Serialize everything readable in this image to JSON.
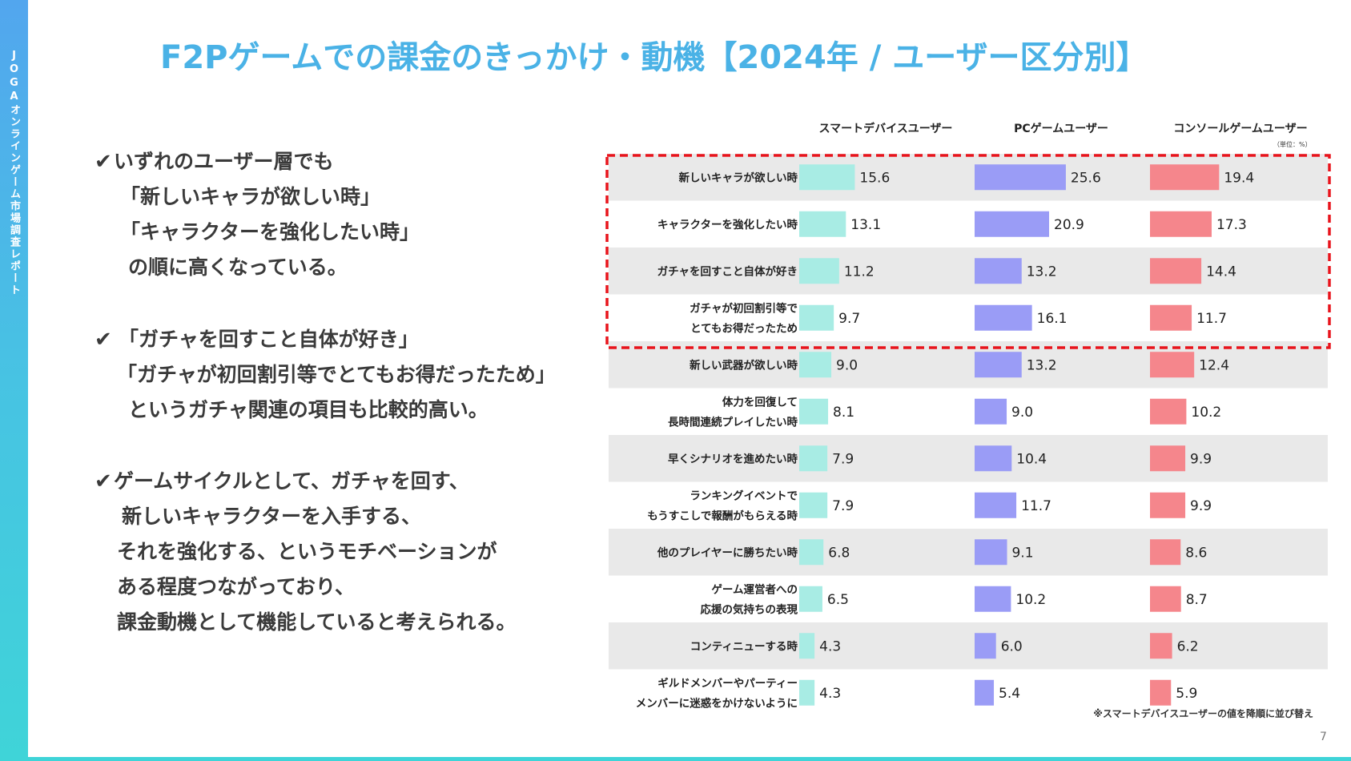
{
  "sidebar": {
    "text": "JOGAオンラインゲーム市場調査レポート"
  },
  "title": "F2Pゲームでの課金のきっかけ・動機【2024年 / ユーザー区分別】",
  "points": [
    {
      "check": "✔",
      "lines": [
        "いずれのユーザー層でも",
        "「新しいキャラが欲しい時」",
        "「キャラクターを強化したい時」",
        "の順に高くなっている。"
      ]
    },
    {
      "check": "✔",
      "lines": [
        "「ガチャを回すこと自体が好き」",
        "「ガチャが初回割引等でとてもお得だったため」",
        "というガチャ関連の項目も比較的高い。"
      ]
    },
    {
      "check": "✔",
      "lines": [
        "ゲームサイクルとして、ガチャを回す、",
        "新しいキャラクターを入手する、",
        "それを強化する、というモチベーションが",
        "ある程度つながっており、",
        "課金動機として機能していると考えられる。"
      ]
    }
  ],
  "chart_data": {
    "type": "bar",
    "orientation": "horizontal",
    "unit_note": "（単位：%）",
    "categories": [
      "新しいキャラが欲しい時",
      "キャラクターを強化したい時",
      "ガチャを回すこと自体が好き",
      "ガチャが初回割引等で\nとてもお得だったため",
      "新しい武器が欲しい時",
      "体力を回復して\n長時間連続プレイしたい時",
      "早くシナリオを進めたい時",
      "ランキングイベントで\nもうすこしで報酬がもらえる時",
      "他のプレイヤーに勝ちたい時",
      "ゲーム運営者への\n応援の気持ちの表現",
      "コンティニューする時",
      "ギルドメンバーやパーティー\nメンバーに迷惑をかけないように"
    ],
    "series": [
      {
        "name": "スマートデバイスユーザー",
        "color": "#a8ece4",
        "values": [
          15.6,
          13.1,
          11.2,
          9.7,
          9.0,
          8.1,
          7.9,
          7.9,
          6.8,
          6.5,
          4.3,
          4.3
        ]
      },
      {
        "name": "PCゲームユーザー",
        "color": "#9a9cf6",
        "values": [
          25.6,
          20.9,
          13.2,
          16.1,
          13.2,
          9.0,
          10.4,
          11.7,
          9.1,
          10.2,
          6.0,
          5.4
        ]
      },
      {
        "name": "コンソールゲームユーザー",
        "color": "#f5868c",
        "values": [
          19.4,
          17.3,
          14.4,
          11.7,
          12.4,
          10.2,
          9.9,
          9.9,
          8.6,
          8.7,
          6.2,
          5.9
        ]
      }
    ],
    "highlight_rows": 4,
    "highlight_color": "#e8141c",
    "stripe_color": "#e9e9e9"
  },
  "footer_note": "※スマートデバイスユーザーの値を降順に並び替え",
  "page_number": "7"
}
